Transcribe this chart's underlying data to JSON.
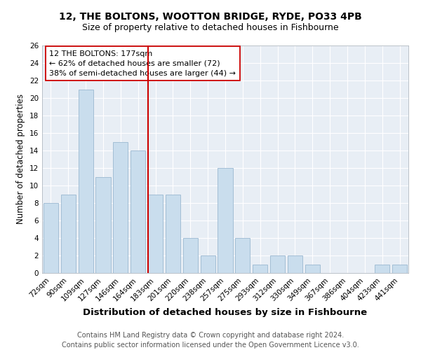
{
  "title": "12, THE BOLTONS, WOOTTON BRIDGE, RYDE, PO33 4PB",
  "subtitle": "Size of property relative to detached houses in Fishbourne",
  "xlabel": "Distribution of detached houses by size in Fishbourne",
  "ylabel": "Number of detached properties",
  "categories": [
    "72sqm",
    "90sqm",
    "109sqm",
    "127sqm",
    "146sqm",
    "164sqm",
    "183sqm",
    "201sqm",
    "220sqm",
    "238sqm",
    "257sqm",
    "275sqm",
    "293sqm",
    "312sqm",
    "330sqm",
    "349sqm",
    "367sqm",
    "386sqm",
    "404sqm",
    "423sqm",
    "441sqm"
  ],
  "values": [
    8,
    9,
    21,
    11,
    15,
    14,
    9,
    9,
    4,
    2,
    12,
    4,
    1,
    2,
    2,
    1,
    0,
    0,
    0,
    1,
    1
  ],
  "bar_color": "#c9dded",
  "bar_edge_color": "#9ab8d0",
  "vline_index": 6,
  "vline_color": "#cc0000",
  "annotation_box_text": "12 THE BOLTONS: 177sqm\n← 62% of detached houses are smaller (72)\n38% of semi-detached houses are larger (44) →",
  "ylim": [
    0,
    26
  ],
  "yticks": [
    0,
    2,
    4,
    6,
    8,
    10,
    12,
    14,
    16,
    18,
    20,
    22,
    24,
    26
  ],
  "footnote": "Contains HM Land Registry data © Crown copyright and database right 2024.\nContains public sector information licensed under the Open Government Licence v3.0.",
  "bg_color": "#e8eef5",
  "title_fontsize": 10,
  "subtitle_fontsize": 9,
  "xlabel_fontsize": 9.5,
  "ylabel_fontsize": 8.5,
  "tick_fontsize": 7.5,
  "annotation_fontsize": 8,
  "footnote_fontsize": 7
}
